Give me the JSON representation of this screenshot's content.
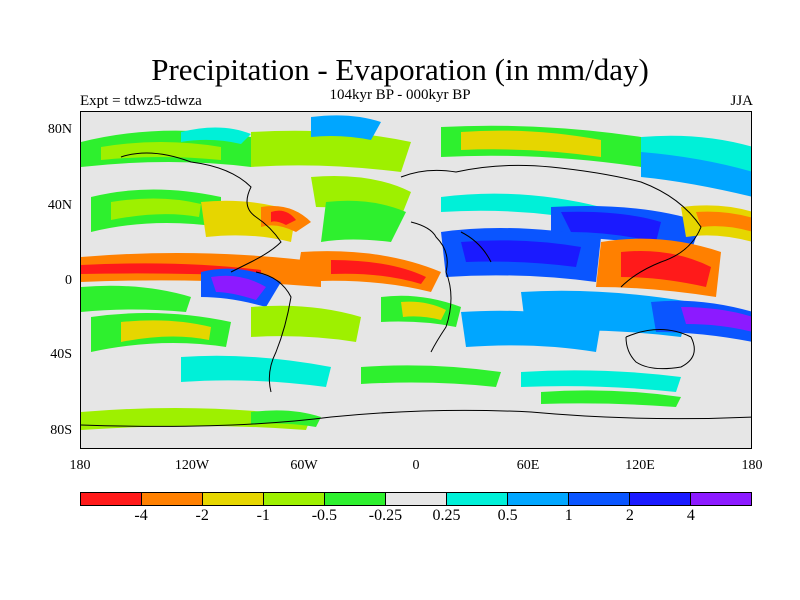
{
  "title": "Precipitation - Evaporation (in mm/day)",
  "subtitle": "104kyr BP - 000kyr BP",
  "experiment": "Expt = tdwz5-tdwza",
  "season": "JJA",
  "lat_labels": [
    "80N",
    "40N",
    "0",
    "40S",
    "80S"
  ],
  "lon_labels": [
    "180",
    "120W",
    "60W",
    "0",
    "60E",
    "120E",
    "180"
  ],
  "colorbar": {
    "colors": [
      "#ff1a1a",
      "#ff8000",
      "#e6d600",
      "#9ef000",
      "#2ef02e",
      "#e6e6e6",
      "#00f0d8",
      "#00a6ff",
      "#0a55ff",
      "#1a1aff",
      "#8c1aff"
    ],
    "labels": [
      "-4",
      "-2",
      "-1",
      "-0.5",
      "-0.25",
      "0.25",
      "0.5",
      "1",
      "2",
      "4"
    ]
  }
}
